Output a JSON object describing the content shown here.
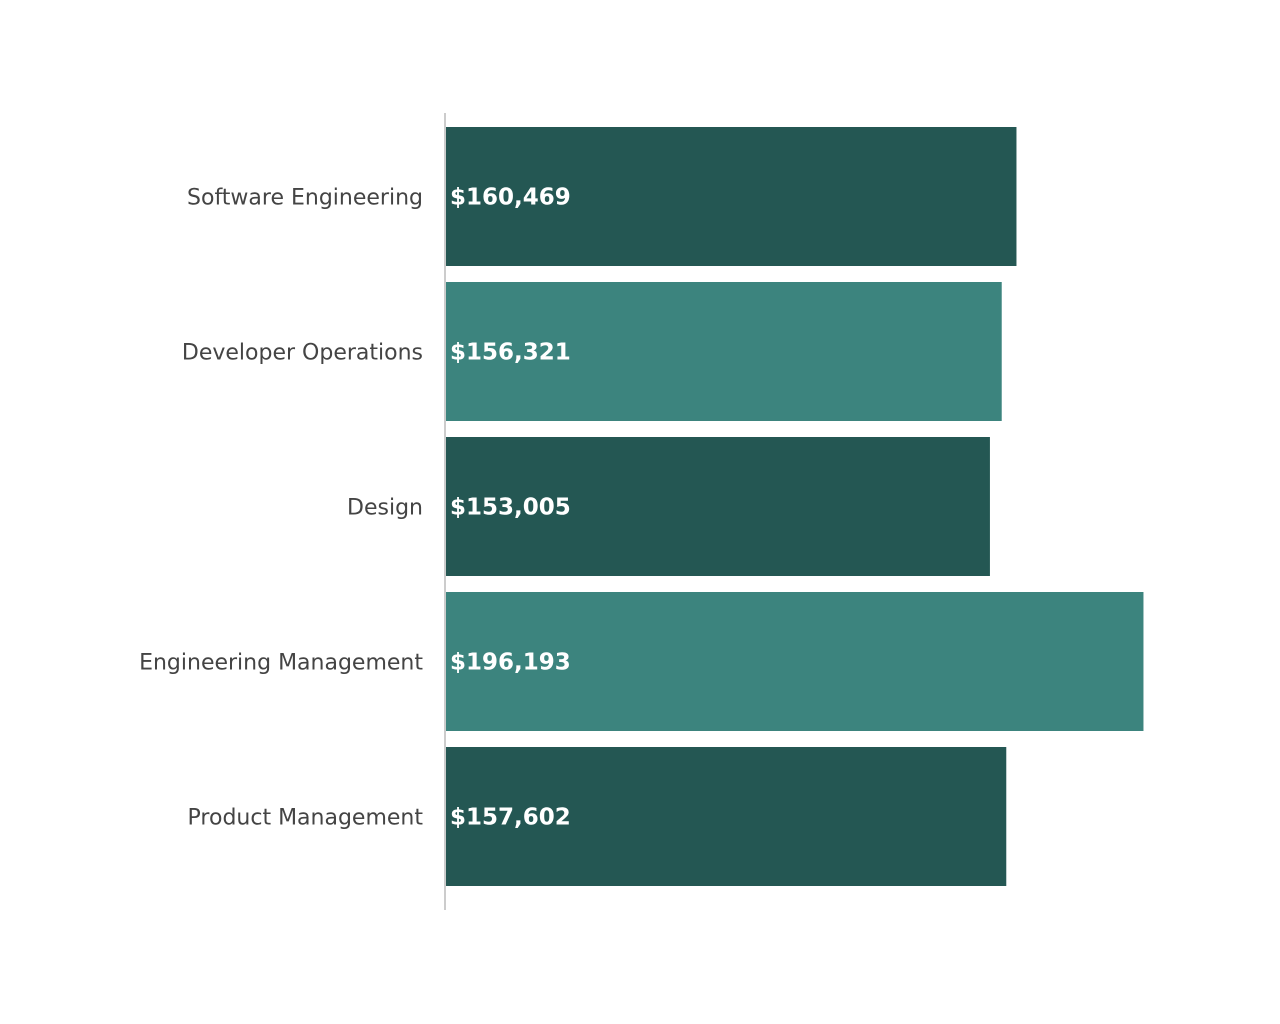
{
  "chart_data": {
    "type": "bar",
    "orientation": "horizontal",
    "title": "",
    "xlabel": "",
    "ylabel": "",
    "categories": [
      "Software Engineering",
      "Developer Operations",
      "Design",
      "Engineering Management",
      "Product Management"
    ],
    "values": [
      160469,
      156321,
      153005,
      196193,
      157602
    ],
    "value_labels": [
      "$160,469",
      "$156,321",
      "$153,005",
      "$196,193",
      "$157,602"
    ],
    "xlim": [
      0,
      200000
    ],
    "grid": false,
    "legend": "none",
    "colors": [
      "#245753",
      "#3c847e",
      "#245753",
      "#3c847e",
      "#245753"
    ],
    "axis_color": "#cccccc"
  }
}
